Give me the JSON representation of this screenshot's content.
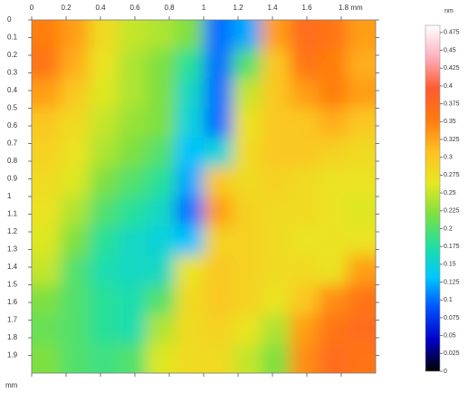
{
  "chart_data": {
    "type": "heatmap",
    "xlim": [
      0,
      2
    ],
    "ylim": [
      0,
      2
    ],
    "xticks": [
      0,
      0.2,
      0.4,
      0.6,
      0.8,
      1,
      1.2,
      1.4,
      1.6,
      {
        "value": 1.8,
        "label": "1.8 mm"
      }
    ],
    "yticks": [
      0,
      0.1,
      0.2,
      0.3,
      0.4,
      0.5,
      0.6,
      0.7,
      0.8,
      0.9,
      1,
      1.1,
      1.2,
      1.3,
      1.4,
      1.5,
      1.6,
      1.7,
      1.8,
      1.9
    ],
    "y_label": "mm",
    "values": [
      [
        0.35,
        0.33,
        0.28,
        0.25,
        0.24,
        0.22,
        0.1,
        0.12,
        0.33,
        0.37,
        0.36,
        0.33
      ],
      [
        0.36,
        0.32,
        0.27,
        0.24,
        0.22,
        0.18,
        0.1,
        0.2,
        0.3,
        0.36,
        0.35,
        0.32
      ],
      [
        0.33,
        0.3,
        0.26,
        0.24,
        0.22,
        0.16,
        0.1,
        0.25,
        0.3,
        0.33,
        0.35,
        0.33
      ],
      [
        0.3,
        0.28,
        0.25,
        0.23,
        0.22,
        0.15,
        0.1,
        0.27,
        0.3,
        0.3,
        0.32,
        0.3
      ],
      [
        0.29,
        0.27,
        0.24,
        0.22,
        0.2,
        0.13,
        0.15,
        0.28,
        0.3,
        0.3,
        0.29,
        0.28
      ],
      [
        0.28,
        0.26,
        0.22,
        0.2,
        0.18,
        0.12,
        0.3,
        0.28,
        0.29,
        0.28,
        0.27,
        0.27
      ],
      [
        0.27,
        0.24,
        0.2,
        0.18,
        0.16,
        0.1,
        0.33,
        0.29,
        0.28,
        0.28,
        0.27,
        0.26
      ],
      [
        0.26,
        0.22,
        0.18,
        0.16,
        0.15,
        0.13,
        0.29,
        0.29,
        0.28,
        0.27,
        0.27,
        0.27
      ],
      [
        0.25,
        0.2,
        0.17,
        0.16,
        0.16,
        0.27,
        0.3,
        0.29,
        0.28,
        0.28,
        0.27,
        0.33
      ],
      [
        0.22,
        0.2,
        0.18,
        0.17,
        0.2,
        0.28,
        0.3,
        0.29,
        0.27,
        0.3,
        0.34,
        0.36
      ],
      [
        0.21,
        0.2,
        0.18,
        0.17,
        0.24,
        0.28,
        0.29,
        0.27,
        0.24,
        0.33,
        0.36,
        0.37
      ],
      [
        0.22,
        0.2,
        0.19,
        0.2,
        0.26,
        0.28,
        0.28,
        0.25,
        0.22,
        0.34,
        0.37,
        0.36
      ]
    ],
    "colorscale": [
      "#000000",
      "#0000c8",
      "#0050ff",
      "#00c8ff",
      "#20e0a0",
      "#7fe040",
      "#e8e820",
      "#ffc020",
      "#ff7a10",
      "#ff5a30",
      "#ffb0c0",
      "#ffffff"
    ],
    "colorbar": {
      "label": "nm",
      "lim": [
        0,
        0.485
      ],
      "ticks": [
        0.475,
        0.45,
        0.425,
        0.4,
        0.375,
        0.35,
        0.325,
        0.3,
        0.275,
        0.25,
        0.225,
        0.2,
        0.175,
        0.15,
        0.125,
        0.1,
        0.075,
        0.05,
        0.025,
        0
      ]
    }
  }
}
